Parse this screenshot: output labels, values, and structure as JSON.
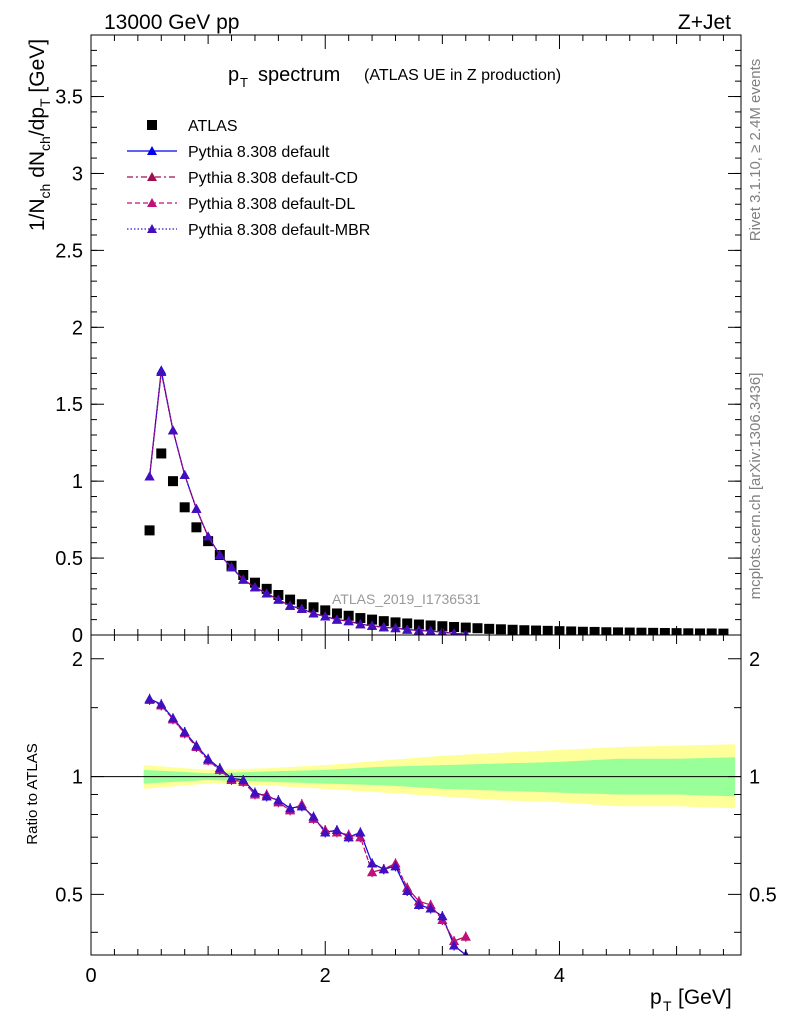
{
  "header": {
    "energy": "13000 GeV pp",
    "process": "Z+Jet"
  },
  "side": {
    "rivet": "Rivet 3.1.10, ≥ 2.4M events",
    "mcplots": "mcplots.cern.ch [arXiv:1306.3436]"
  },
  "chart_data": [
    {
      "type": "scatter",
      "title": "spectrum",
      "title_note": "(ATLAS UE in Z production)",
      "watermark": "ATLAS_2019_I1736531",
      "xlabel": "p_T [GeV]",
      "ylabel": "1/N_ch dN_ch/dp_T [GeV]",
      "xlim": [
        0,
        5.55
      ],
      "ylim": [
        0,
        3.9
      ],
      "yticks": [
        "0",
        "0.5",
        "1",
        "1.5",
        "2",
        "2.5",
        "3",
        "3.5"
      ],
      "legend_position": "top-left",
      "series": [
        {
          "name": "ATLAS",
          "color": "#000000",
          "marker": "square",
          "x": [
            0.5,
            0.6,
            0.7,
            0.8,
            0.9,
            1.0,
            1.1,
            1.2,
            1.3,
            1.4,
            1.5,
            1.6,
            1.7,
            1.8,
            1.9,
            2.0,
            2.1,
            2.2,
            2.3,
            2.4,
            2.5,
            2.6,
            2.7,
            2.8,
            2.9,
            3.0,
            3.1,
            3.2,
            3.3,
            3.4,
            3.5,
            3.6,
            3.7,
            3.8,
            3.9,
            4.0,
            4.1,
            4.2,
            4.3,
            4.4,
            4.5,
            4.6,
            4.7,
            4.8,
            4.9,
            5.0,
            5.1,
            5.2,
            5.3,
            5.4
          ],
          "y": [
            0.68,
            1.18,
            1.0,
            0.83,
            0.7,
            0.61,
            0.52,
            0.45,
            0.39,
            0.34,
            0.3,
            0.26,
            0.23,
            0.2,
            0.18,
            0.16,
            0.14,
            0.125,
            0.11,
            0.1,
            0.09,
            0.082,
            0.075,
            0.068,
            0.062,
            0.057,
            0.052,
            0.048,
            0.044,
            0.04,
            0.037,
            0.034,
            0.031,
            0.029,
            0.027,
            0.025,
            0.023,
            0.021,
            0.02,
            0.018,
            0.017,
            0.016,
            0.015,
            0.014,
            0.013,
            0.012,
            0.011,
            0.01,
            0.01,
            0.009
          ]
        },
        {
          "name": "Pythia 8.308 default",
          "color": "#0000ee",
          "marker": "triangle",
          "line": "solid",
          "x": [
            0.5,
            0.6,
            0.7,
            0.8,
            0.9,
            1.0,
            1.1,
            1.2,
            1.3,
            1.4,
            1.5,
            1.6,
            1.7,
            1.8,
            1.9,
            2.0,
            2.1,
            2.2,
            2.3,
            2.4,
            2.5,
            2.6,
            2.7,
            2.8,
            2.9,
            3.0,
            3.1,
            3.2
          ],
          "y": [
            1.03,
            1.72,
            1.33,
            1.04,
            0.82,
            0.64,
            0.52,
            0.44,
            0.36,
            0.31,
            0.27,
            0.23,
            0.19,
            0.17,
            0.14,
            0.12,
            0.1,
            0.09,
            0.07,
            0.06,
            0.05,
            0.045,
            0.035,
            0.03,
            0.025,
            0.02,
            0.01,
            0.005
          ]
        },
        {
          "name": "Pythia 8.308 default-CD",
          "color": "#a01050",
          "marker": "triangle",
          "line": "dashdot",
          "x": [
            0.5,
            0.6,
            0.7,
            0.8,
            0.9,
            1.0,
            1.1,
            1.2,
            1.3,
            1.4,
            1.5,
            1.6,
            1.7,
            1.8,
            1.9,
            2.0,
            2.1,
            2.2,
            2.3,
            2.4,
            2.5,
            2.6,
            2.7,
            2.8,
            2.9,
            3.0,
            3.1,
            3.2
          ],
          "y": [
            1.03,
            1.71,
            1.33,
            1.04,
            0.82,
            0.64,
            0.52,
            0.44,
            0.36,
            0.31,
            0.27,
            0.23,
            0.19,
            0.17,
            0.14,
            0.12,
            0.1,
            0.09,
            0.07,
            0.06,
            0.05,
            0.045,
            0.035,
            0.03,
            0.025,
            0.02,
            0.01,
            0.005
          ]
        },
        {
          "name": "Pythia 8.308 default-DL",
          "color": "#c0107a",
          "marker": "triangle",
          "line": "dashed",
          "x": [
            0.5,
            0.6,
            0.7,
            0.8,
            0.9,
            1.0,
            1.1,
            1.2,
            1.3,
            1.4,
            1.5,
            1.6,
            1.7,
            1.8,
            1.9,
            2.0,
            2.1,
            2.2,
            2.3,
            2.4,
            2.5,
            2.6,
            2.7,
            2.8,
            2.9,
            3.0,
            3.1,
            3.2
          ],
          "y": [
            1.03,
            1.71,
            1.33,
            1.04,
            0.82,
            0.64,
            0.52,
            0.44,
            0.36,
            0.31,
            0.27,
            0.23,
            0.19,
            0.17,
            0.14,
            0.12,
            0.1,
            0.09,
            0.07,
            0.06,
            0.05,
            0.045,
            0.035,
            0.03,
            0.025,
            0.02,
            0.01,
            0.005
          ]
        },
        {
          "name": "Pythia 8.308 default-MBR",
          "color": "#4010c0",
          "marker": "triangle",
          "line": "dotted",
          "x": [
            0.5,
            0.6,
            0.7,
            0.8,
            0.9,
            1.0,
            1.1,
            1.2,
            1.3,
            1.4,
            1.5,
            1.6,
            1.7,
            1.8,
            1.9,
            2.0,
            2.1,
            2.2,
            2.3,
            2.4,
            2.5,
            2.6,
            2.7,
            2.8,
            2.9,
            3.0,
            3.1,
            3.2
          ],
          "y": [
            1.03,
            1.71,
            1.33,
            1.04,
            0.82,
            0.64,
            0.52,
            0.44,
            0.36,
            0.31,
            0.27,
            0.23,
            0.19,
            0.17,
            0.14,
            0.12,
            0.1,
            0.09,
            0.07,
            0.06,
            0.05,
            0.045,
            0.035,
            0.03,
            0.025,
            0.02,
            0.01,
            0.005
          ]
        }
      ]
    },
    {
      "type": "line",
      "ylabel": "Ratio to ATLAS",
      "xlabel": "p_T [GeV]",
      "xlim": [
        0,
        5.55
      ],
      "ylim": [
        0.35,
        2.3
      ],
      "ylog": true,
      "xticks": [
        "0",
        "2",
        "4"
      ],
      "yticks": [
        "0.5",
        "1",
        "2"
      ],
      "reference_line": 1,
      "band": {
        "x": [
          0.45,
          1.0,
          1.5,
          2.0,
          2.5,
          3.0,
          3.5,
          4.0,
          4.5,
          5.0,
          5.5
        ],
        "inner_lo": [
          0.96,
          0.98,
          0.97,
          0.96,
          0.95,
          0.93,
          0.92,
          0.91,
          0.9,
          0.9,
          0.89
        ],
        "inner_hi": [
          1.04,
          1.02,
          1.03,
          1.04,
          1.06,
          1.07,
          1.08,
          1.09,
          1.11,
          1.11,
          1.12
        ],
        "outer_lo": [
          0.93,
          0.96,
          0.95,
          0.93,
          0.91,
          0.89,
          0.87,
          0.86,
          0.84,
          0.84,
          0.83
        ],
        "outer_hi": [
          1.07,
          1.04,
          1.05,
          1.07,
          1.1,
          1.13,
          1.15,
          1.17,
          1.19,
          1.2,
          1.21
        ],
        "inner_color": "#99ff99",
        "outer_color": "#ffff99"
      },
      "series": [
        {
          "name": "Pythia 8.308 default",
          "color": "#0000ee",
          "x": [
            0.5,
            0.6,
            0.7,
            0.8,
            0.9,
            1.0,
            1.1,
            1.2,
            1.3,
            1.4,
            1.5,
            1.6,
            1.7,
            1.8,
            1.9,
            2.0,
            2.1,
            2.2,
            2.3,
            2.4,
            2.5,
            2.6,
            2.7,
            2.8,
            2.9,
            3.0,
            3.1,
            3.2
          ],
          "y": [
            1.58,
            1.53,
            1.41,
            1.3,
            1.2,
            1.11,
            1.05,
            0.99,
            0.98,
            0.91,
            0.89,
            0.87,
            0.83,
            0.84,
            0.79,
            0.72,
            0.73,
            0.7,
            0.72,
            0.6,
            0.58,
            0.59,
            0.51,
            0.47,
            0.46,
            0.44,
            0.37,
            0.35
          ]
        },
        {
          "name": "Pythia 8.308 default-CD",
          "color": "#a01050",
          "x": [
            0.5,
            0.6,
            0.7,
            0.8,
            0.9,
            1.0,
            1.1,
            1.2,
            1.3,
            1.4,
            1.5,
            1.6,
            1.7,
            1.8,
            1.9,
            2.0,
            2.1,
            2.2,
            2.3,
            2.4,
            2.5,
            2.6,
            2.7,
            2.8,
            2.9,
            3.0,
            3.1,
            3.2
          ],
          "y": [
            1.57,
            1.52,
            1.4,
            1.29,
            1.19,
            1.1,
            1.04,
            0.98,
            0.97,
            0.9,
            0.9,
            0.86,
            0.82,
            0.85,
            0.78,
            0.73,
            0.72,
            0.71,
            0.7,
            0.57,
            0.58,
            0.6,
            0.52,
            0.48,
            0.47,
            0.43,
            0.38,
            0.39
          ]
        },
        {
          "name": "Pythia 8.308 default-DL",
          "color": "#c0107a",
          "x": [
            0.5,
            0.6,
            0.7,
            0.8,
            0.9,
            1.0,
            1.1,
            1.2,
            1.3,
            1.4,
            1.5,
            1.6,
            1.7,
            1.8,
            1.9,
            2.0,
            2.1,
            2.2,
            2.3,
            2.4,
            2.5,
            2.6,
            2.7,
            2.8,
            2.9,
            3.0,
            3.1,
            3.2
          ],
          "y": [
            1.57,
            1.52,
            1.4,
            1.29,
            1.19,
            1.1,
            1.04,
            0.98,
            0.97,
            0.9,
            0.9,
            0.86,
            0.82,
            0.85,
            0.78,
            0.73,
            0.72,
            0.71,
            0.7,
            0.57,
            0.58,
            0.6,
            0.52,
            0.48,
            0.47,
            0.43,
            0.38,
            0.39
          ]
        },
        {
          "name": "Pythia 8.308 default-MBR",
          "color": "#4010c0",
          "x": [
            0.5,
            0.6,
            0.7,
            0.8,
            0.9,
            1.0,
            1.1,
            1.2,
            1.3,
            1.4,
            1.5,
            1.6,
            1.7,
            1.8,
            1.9,
            2.0,
            2.1,
            2.2,
            2.3,
            2.4,
            2.5,
            2.6,
            2.7,
            2.8,
            2.9,
            3.0,
            3.1,
            3.2
          ],
          "y": [
            1.58,
            1.53,
            1.41,
            1.3,
            1.2,
            1.11,
            1.05,
            0.99,
            0.98,
            0.91,
            0.89,
            0.87,
            0.83,
            0.84,
            0.79,
            0.72,
            0.73,
            0.7,
            0.72,
            0.6,
            0.58,
            0.59,
            0.51,
            0.47,
            0.46,
            0.44,
            0.37,
            0.35
          ]
        }
      ]
    }
  ]
}
